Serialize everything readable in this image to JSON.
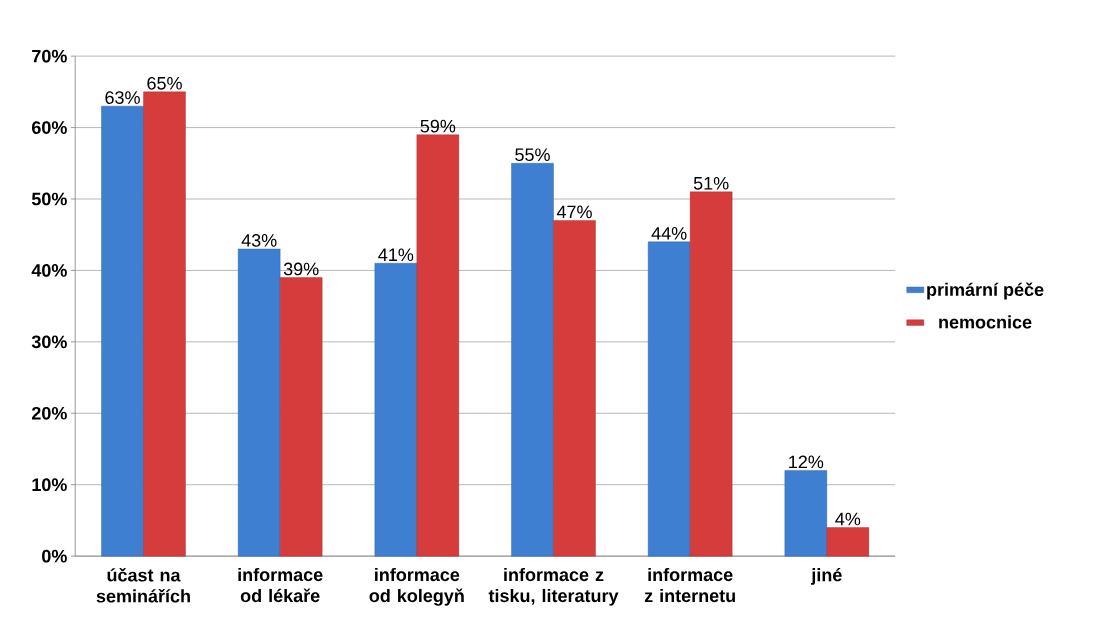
{
  "chart_data": {
    "type": "bar",
    "categories": [
      "účast na seminářích",
      "informace od lékaře",
      "informace od kolegyň",
      "informace z tisku, literatury",
      "informace z internetu",
      "jiné"
    ],
    "series": [
      {
        "name": "primární péče",
        "color": "#3f7fd1",
        "values": [
          63,
          43,
          41,
          55,
          44,
          12
        ],
        "value_labels": [
          "63%",
          "43%",
          "41%",
          "55%",
          "44%",
          "12%"
        ]
      },
      {
        "name": "nemocnice",
        "color": "#d63c3c",
        "values": [
          65,
          39,
          59,
          47,
          51,
          4
        ],
        "value_labels": [
          "65%",
          "39%",
          "59%",
          "47%",
          "51%",
          "4%"
        ]
      }
    ],
    "ylim": [
      0,
      70
    ],
    "yticks": [
      {
        "value": 0,
        "label": "0%"
      },
      {
        "value": 10,
        "label": "10%"
      },
      {
        "value": 20,
        "label": "20%"
      },
      {
        "value": 30,
        "label": "30%"
      },
      {
        "value": 40,
        "label": "40%"
      },
      {
        "value": 50,
        "label": "50%"
      },
      {
        "value": 60,
        "label": "60%"
      },
      {
        "value": 70,
        "label": "70%"
      }
    ],
    "grid": "y",
    "legend": "right"
  }
}
